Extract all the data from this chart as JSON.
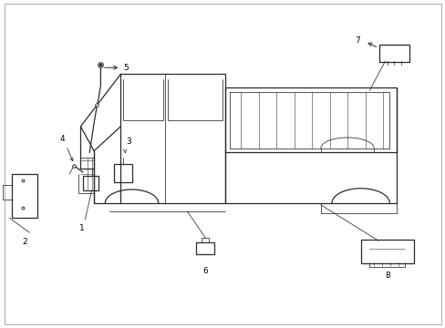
{
  "bg_color": "#ffffff",
  "line_color": "#2a2a2a",
  "label_color": "#000000",
  "fig_width": 4.89,
  "fig_height": 3.6,
  "dpi": 100,
  "border_color": "#aaaaaa"
}
